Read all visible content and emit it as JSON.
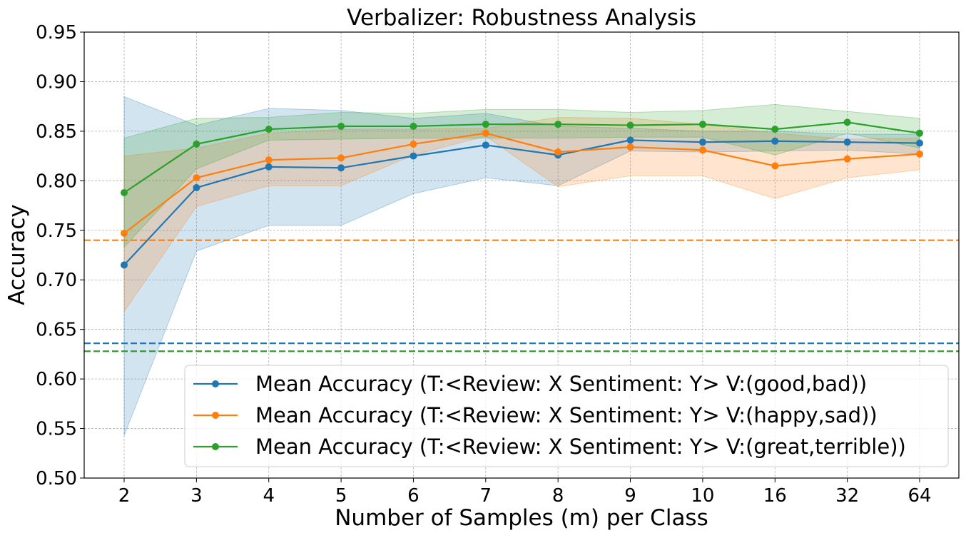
{
  "chart_data": {
    "type": "line",
    "title": "Verbalizer: Robustness Analysis",
    "xlabel": "Number of Samples (m) per Class",
    "ylabel": "Accuracy",
    "categories": [
      "2",
      "3",
      "4",
      "5",
      "6",
      "7",
      "8",
      "9",
      "10",
      "16",
      "32",
      "64"
    ],
    "ylim": [
      0.5,
      0.95
    ],
    "yticks": [
      "0.50",
      "0.55",
      "0.60",
      "0.65",
      "0.70",
      "0.75",
      "0.80",
      "0.85",
      "0.90",
      "0.95"
    ],
    "grid": true,
    "legend_position": "lower-right",
    "series": [
      {
        "name": "Mean Accuracy (T:<Review: X Sentiment: Y> V:(good,bad))",
        "color": "#1f77b4",
        "values": [
          0.715,
          0.793,
          0.814,
          0.813,
          0.825,
          0.836,
          0.826,
          0.841,
          0.839,
          0.84,
          0.839,
          0.838
        ],
        "lower": [
          0.543,
          0.729,
          0.755,
          0.755,
          0.787,
          0.803,
          0.795,
          0.83,
          0.829,
          0.83,
          0.831,
          0.827
        ],
        "upper": [
          0.885,
          0.856,
          0.873,
          0.871,
          0.863,
          0.868,
          0.855,
          0.853,
          0.85,
          0.85,
          0.847,
          0.847
        ]
      },
      {
        "name": "Mean Accuracy (T:<Review: X Sentiment: Y> V:(happy,sad))",
        "color": "#ff7f0e",
        "values": [
          0.747,
          0.803,
          0.821,
          0.823,
          0.837,
          0.848,
          0.829,
          0.834,
          0.831,
          0.815,
          0.822,
          0.827
        ],
        "lower": [
          0.668,
          0.774,
          0.795,
          0.795,
          0.826,
          0.845,
          0.794,
          0.805,
          0.805,
          0.782,
          0.803,
          0.811
        ],
        "upper": [
          0.825,
          0.833,
          0.848,
          0.852,
          0.852,
          0.853,
          0.864,
          0.863,
          0.857,
          0.848,
          0.842,
          0.843
        ]
      },
      {
        "name": "Mean Accuracy (T:<Review: X Sentiment: Y> V:(great,terrible))",
        "color": "#2ca02c",
        "values": [
          0.788,
          0.837,
          0.852,
          0.855,
          0.855,
          0.857,
          0.857,
          0.856,
          0.857,
          0.852,
          0.859,
          0.848
        ],
        "lower": [
          0.733,
          0.812,
          0.841,
          0.842,
          0.843,
          0.843,
          0.843,
          0.844,
          0.844,
          0.826,
          0.848,
          0.833
        ],
        "upper": [
          0.843,
          0.863,
          0.864,
          0.869,
          0.868,
          0.872,
          0.872,
          0.869,
          0.871,
          0.877,
          0.87,
          0.863
        ]
      }
    ],
    "baselines": [
      {
        "series": "good,bad",
        "value": 0.636,
        "color": "#1f77b4"
      },
      {
        "series": "happy,sad",
        "value": 0.74,
        "color": "#ff7f0e"
      },
      {
        "series": "great,terrible",
        "value": 0.628,
        "color": "#2ca02c"
      }
    ]
  }
}
